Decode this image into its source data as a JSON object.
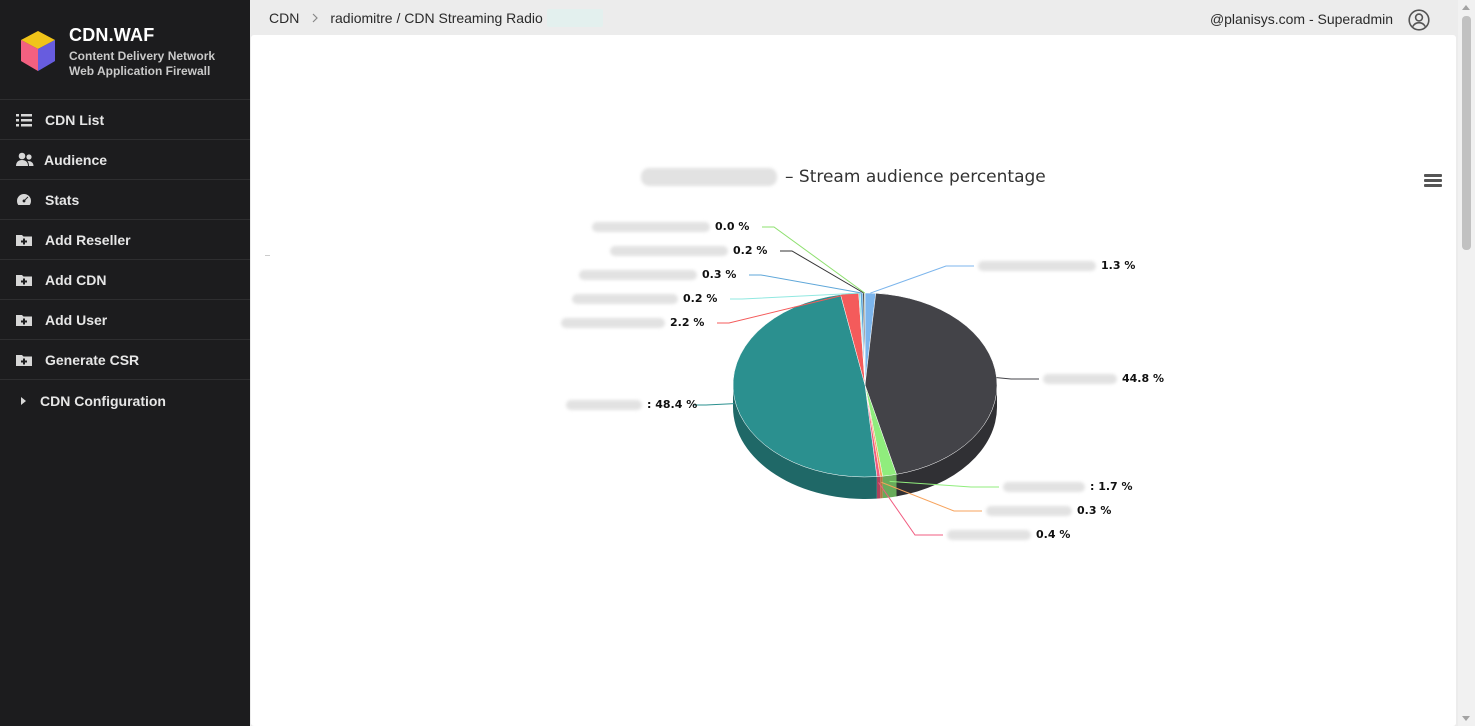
{
  "brand": {
    "title": "CDN.WAF",
    "subtitle_line1": "Content Delivery Network",
    "subtitle_line2": "Web Application Firewall"
  },
  "sidebar": {
    "items": [
      {
        "label": "CDN List",
        "icon": "list-icon"
      },
      {
        "label": "Audience",
        "icon": "users-icon"
      },
      {
        "label": "Stats",
        "icon": "gauge-icon"
      },
      {
        "label": "Add Reseller",
        "icon": "folder-plus-icon"
      },
      {
        "label": "Add CDN",
        "icon": "folder-plus-icon"
      },
      {
        "label": "Add User",
        "icon": "folder-plus-icon"
      },
      {
        "label": "Generate CSR",
        "icon": "folder-plus-icon"
      }
    ],
    "config_label": "CDN Configuration"
  },
  "breadcrumb": {
    "root": "CDN",
    "current": "radiomitre / CDN Streaming Radio"
  },
  "user": {
    "label": "@planisys.com - Superadmin"
  },
  "chart_data": {
    "type": "pie",
    "title": "– Stream audience percentage",
    "series": [
      {
        "value": 1.3,
        "label": "1.3 %",
        "color": "#7cb5ec"
      },
      {
        "value": 44.8,
        "label": "44.8 %",
        "color": "#434348"
      },
      {
        "value": 1.7,
        "label": ": 1.7 %",
        "color": "#90ed7d"
      },
      {
        "value": 0.3,
        "label": "0.3 %",
        "color": "#f7a35c"
      },
      {
        "value": 0.4,
        "label": "0.4 %",
        "color": "#f15c80"
      },
      {
        "value": 48.4,
        "label": ": 48.4 %",
        "color": "#2b908f"
      },
      {
        "value": 2.2,
        "label": "2.2 %",
        "color": "#f45b5b"
      },
      {
        "value": 0.2,
        "label": "0.2 %",
        "color": "#91e8e1"
      },
      {
        "value": 0.3,
        "label": "0.3 %",
        "color": "#5fa7d9"
      },
      {
        "value": 0.2,
        "label": "0.2 %",
        "color": "#333333"
      },
      {
        "value": 0.0,
        "label": "0.0 %",
        "color": "#8ee06f"
      }
    ],
    "legend": "none"
  }
}
